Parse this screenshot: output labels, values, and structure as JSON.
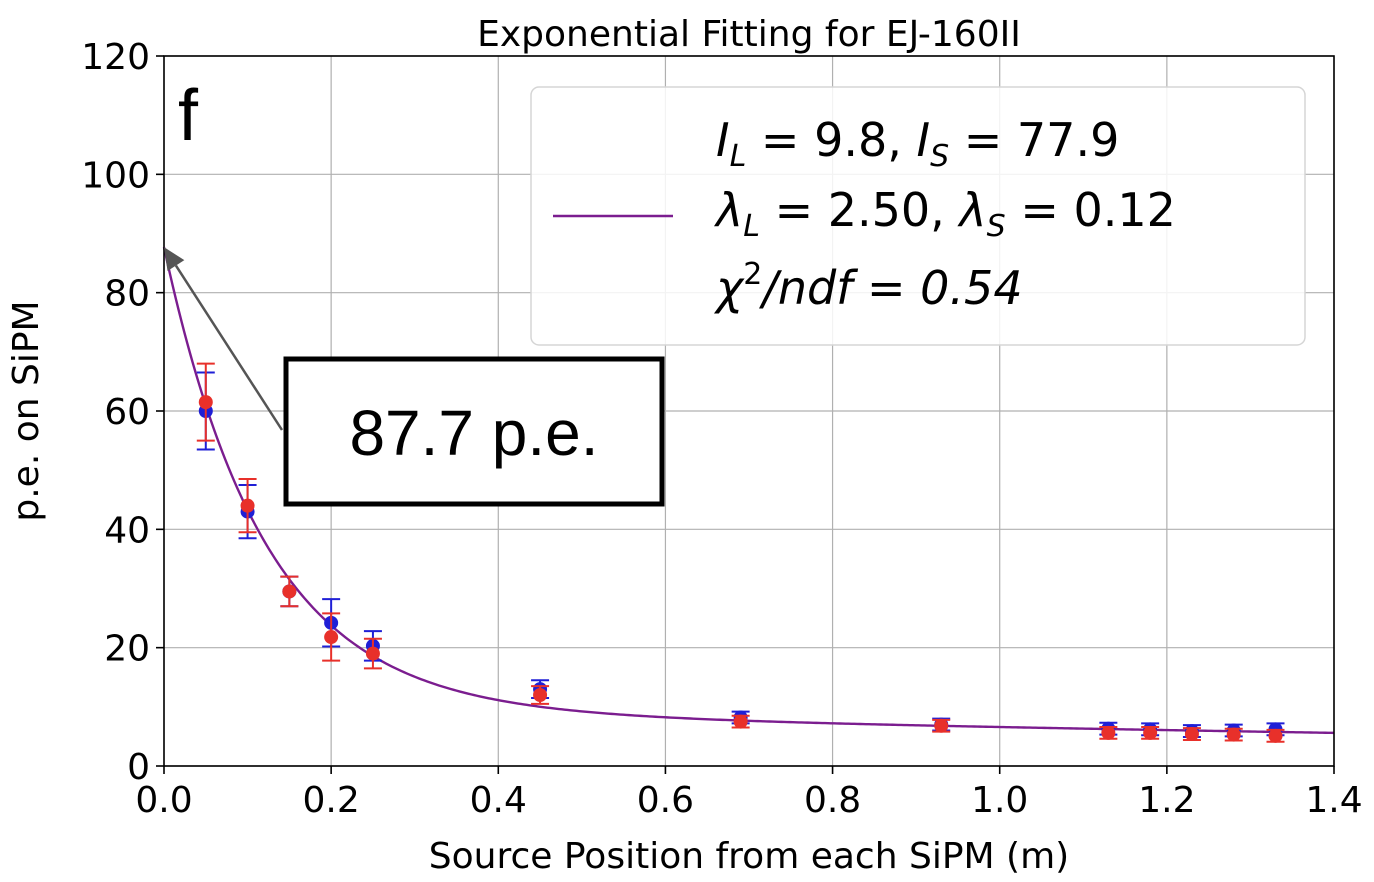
{
  "chart_data": {
    "type": "scatter",
    "title": "Exponential Fitting for EJ-160II",
    "xlabel": "Source Position from each SiPM (m)",
    "ylabel": "p.e. on SiPM",
    "xlim": [
      0.0,
      1.4
    ],
    "ylim": [
      0,
      120
    ],
    "xticks": [
      0.0,
      0.2,
      0.4,
      0.6,
      0.8,
      1.0,
      1.2,
      1.4
    ],
    "xtick_labels": [
      "0.0",
      "0.2",
      "0.4",
      "0.6",
      "0.8",
      "1.0",
      "1.2",
      "1.4"
    ],
    "yticks": [
      0,
      20,
      40,
      60,
      80,
      100,
      120
    ],
    "ytick_labels": [
      "0",
      "20",
      "40",
      "60",
      "80",
      "100",
      "120"
    ],
    "grid": true,
    "panel_label": "f",
    "series": [
      {
        "color": "#1f1fd6",
        "x": [
          0.05,
          0.1,
          0.15,
          0.2,
          0.25,
          0.45,
          0.69,
          0.93,
          1.13,
          1.18,
          1.23,
          1.28,
          1.33
        ],
        "y": [
          60.0,
          43.0,
          29.5,
          24.2,
          20.3,
          13.0,
          8.2,
          7.0,
          6.3,
          6.2,
          5.9,
          6.0,
          6.2
        ],
        "err": [
          6.5,
          4.5,
          2.5,
          4.0,
          2.5,
          1.5,
          1.0,
          1.0,
          1.0,
          1.0,
          1.0,
          1.0,
          1.0
        ]
      },
      {
        "color": "#e8302a",
        "x": [
          0.05,
          0.1,
          0.15,
          0.2,
          0.25,
          0.45,
          0.69,
          0.93,
          1.13,
          1.18,
          1.23,
          1.28,
          1.33
        ],
        "y": [
          61.5,
          44.0,
          29.5,
          21.8,
          19.0,
          12.0,
          7.5,
          6.8,
          5.6,
          5.6,
          5.4,
          5.3,
          5.1
        ],
        "err": [
          6.5,
          4.5,
          2.5,
          4.0,
          2.5,
          1.5,
          1.0,
          1.0,
          1.0,
          1.0,
          1.0,
          1.0,
          1.0
        ]
      }
    ],
    "fit": {
      "color": "#7b1d8f",
      "model": "I_L*exp(-x/lambda_L) + I_S*exp(-x/lambda_S)",
      "I_L": 9.8,
      "I_S": 77.9,
      "lambda_L": 2.5,
      "lambda_S": 0.12
    },
    "legend": {
      "position": "top-right",
      "line1": "= 9.8,",
      "line1b": "= 77.9",
      "line2": "= 2.50,",
      "line2b": "= 0.12",
      "line3": "/ndf = 0.54"
    },
    "annotation": {
      "text": "87.7 p.e.",
      "points_to_x": 0.0,
      "points_to_y": 87.7
    }
  }
}
